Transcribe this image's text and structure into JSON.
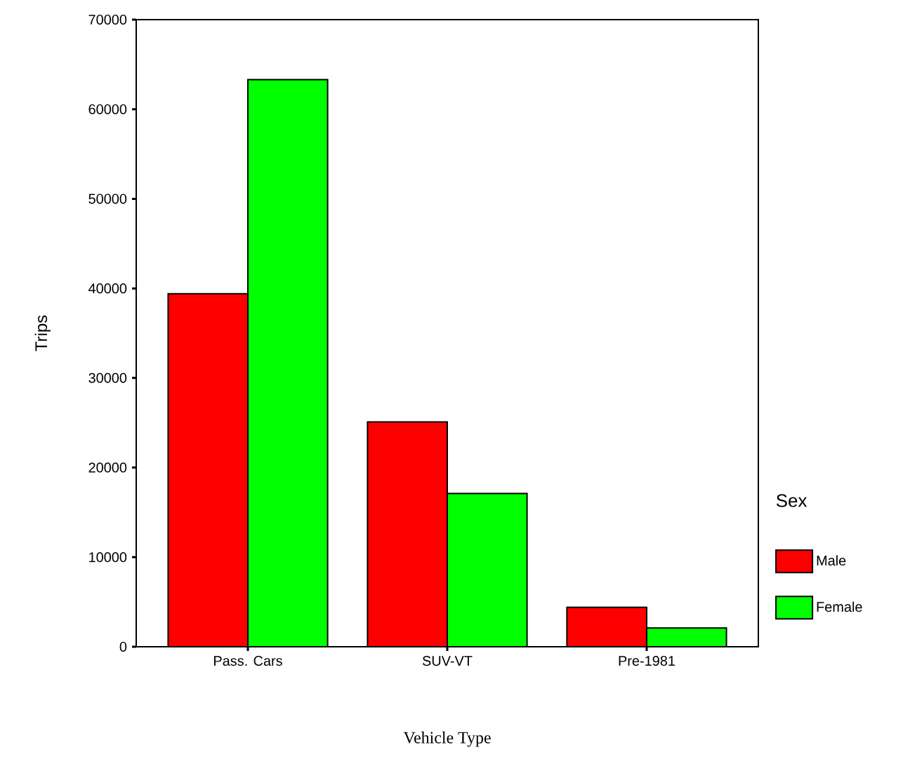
{
  "chart_data": {
    "type": "bar",
    "xlabel": "Vehicle Type",
    "ylabel": "Trips",
    "legend_title": "Sex",
    "legend": "right",
    "categories": [
      "Pass. Cars",
      "SUV-VT",
      "Pre-1981"
    ],
    "series": [
      {
        "name": "Male",
        "color": "#ff0000",
        "values": [
          39400,
          25100,
          4400
        ]
      },
      {
        "name": "Female",
        "color": "#00ff00",
        "values": [
          63300,
          17100,
          2100
        ]
      }
    ],
    "ylim": [
      0,
      70000
    ],
    "yticks": [
      0,
      10000,
      20000,
      30000,
      40000,
      50000,
      60000,
      70000
    ]
  }
}
